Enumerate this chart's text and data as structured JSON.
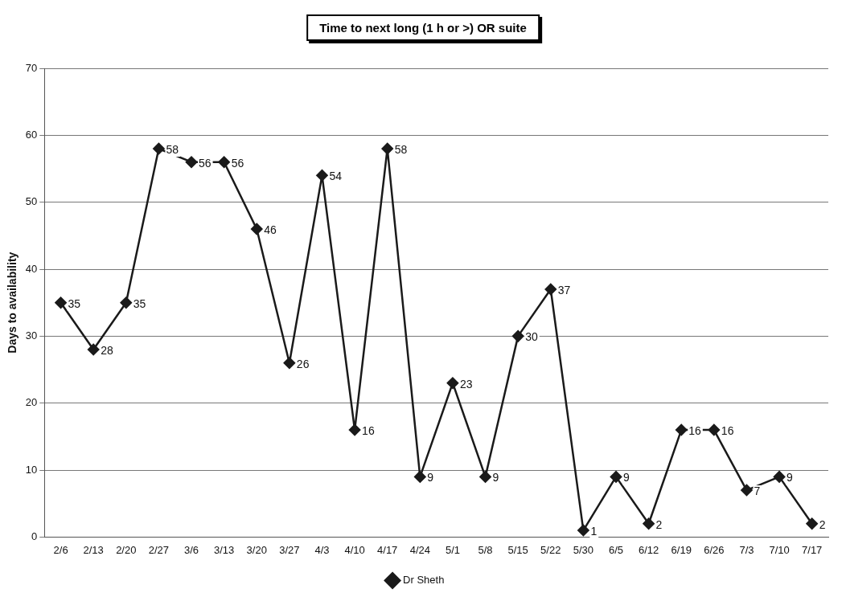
{
  "chart_data": {
    "type": "line",
    "title": "Time to next long (1 h or >) OR suite",
    "ylabel": "Days to availability",
    "categories": [
      "2/6",
      "2/13",
      "2/20",
      "2/27",
      "3/6",
      "3/13",
      "3/20",
      "3/27",
      "4/3",
      "4/10",
      "4/17",
      "4/24",
      "5/1",
      "5/8",
      "5/15",
      "5/22",
      "5/30",
      "6/5",
      "6/12",
      "6/19",
      "6/26",
      "7/3",
      "7/10",
      "7/17"
    ],
    "series": [
      {
        "name": "Dr Sheth",
        "color": "#1a1a1a",
        "values": [
          35,
          28,
          35,
          58,
          56,
          56,
          46,
          26,
          54,
          16,
          58,
          9,
          23,
          9,
          30,
          37,
          1,
          9,
          2,
          16,
          16,
          7,
          9,
          2
        ]
      }
    ],
    "ylim": [
      0,
      70
    ],
    "yticks": [
      0,
      10,
      20,
      30,
      40,
      50,
      60,
      70
    ],
    "grid": "y",
    "legend": "bottom",
    "marker": "diamond",
    "line_style": "solid",
    "data_labels": true
  }
}
